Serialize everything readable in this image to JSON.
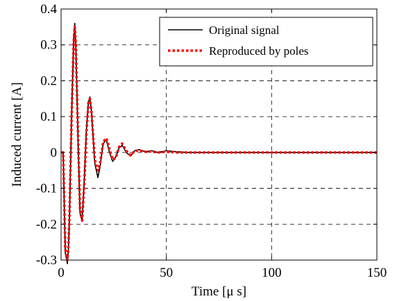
{
  "chart_data": {
    "type": "line",
    "title": "",
    "xlabel": "Time [μ s]",
    "ylabel": "Induced current [A]",
    "xlim": [
      0,
      150
    ],
    "ylim": [
      -0.3,
      0.4
    ],
    "xticks": [
      0,
      50,
      100,
      150
    ],
    "yticks": [
      -0.3,
      -0.2,
      -0.1,
      0,
      0.1,
      0.2,
      0.3,
      0.4
    ],
    "xtick_labels": [
      "0",
      "50",
      "100",
      "150"
    ],
    "ytick_labels": [
      "-0.3",
      "-0.2",
      "-0.1",
      "0",
      "0.1",
      "0.2",
      "0.3",
      "0.4"
    ],
    "grid": true,
    "legend_position": "top-right",
    "series": [
      {
        "name": "Original signal",
        "color": "#000000",
        "style": "solid",
        "x": [
          0,
          1,
          2,
          3,
          3.5,
          4,
          5,
          6,
          6.5,
          7,
          8,
          9,
          10,
          11,
          12,
          13,
          13.7,
          14.5,
          16,
          17.5,
          18.5,
          20,
          21.5,
          23,
          24.5,
          26,
          27.5,
          29,
          31,
          33,
          35,
          37,
          40,
          43,
          46,
          50,
          55,
          60,
          70,
          80,
          100,
          120,
          150
        ],
        "y": [
          0,
          0,
          -0.28,
          -0.31,
          -0.27,
          -0.18,
          0.1,
          0.32,
          0.36,
          0.3,
          0.05,
          -0.17,
          -0.19,
          -0.08,
          0.06,
          0.14,
          0.155,
          0.11,
          -0.03,
          -0.07,
          -0.04,
          0.025,
          0.035,
          0.0,
          -0.025,
          -0.012,
          0.012,
          0.02,
          0.0,
          -0.01,
          0.005,
          0.008,
          0.002,
          0.005,
          0.0,
          0.005,
          0.002,
          0.0,
          0.0,
          0.0,
          0.0,
          0.0,
          0.0
        ]
      },
      {
        "name": "Reproduced by poles",
        "color": "#ff0000",
        "style": "dotted",
        "x": [
          0,
          1,
          2,
          3,
          3.5,
          4,
          5,
          6,
          6.5,
          7,
          8,
          9,
          10,
          11,
          12,
          13,
          13.7,
          14.5,
          16,
          17.5,
          18.5,
          20,
          21.5,
          23,
          24.5,
          26,
          27.5,
          29,
          31,
          33,
          35,
          37,
          40,
          43,
          46,
          50,
          55,
          60,
          70,
          80,
          100,
          120,
          150
        ],
        "y": [
          0,
          0,
          -0.27,
          -0.3,
          -0.26,
          -0.17,
          0.1,
          0.31,
          0.35,
          0.3,
          0.06,
          -0.16,
          -0.19,
          -0.09,
          0.05,
          0.14,
          0.15,
          0.11,
          -0.02,
          -0.05,
          -0.03,
          0.03,
          0.04,
          0.01,
          -0.02,
          -0.015,
          0.015,
          0.025,
          0.005,
          -0.008,
          0.004,
          0.006,
          0.002,
          0.003,
          0.0,
          0.002,
          0.0,
          0.0,
          0.0,
          0.0,
          0.0,
          0.0,
          0.0
        ]
      }
    ]
  }
}
